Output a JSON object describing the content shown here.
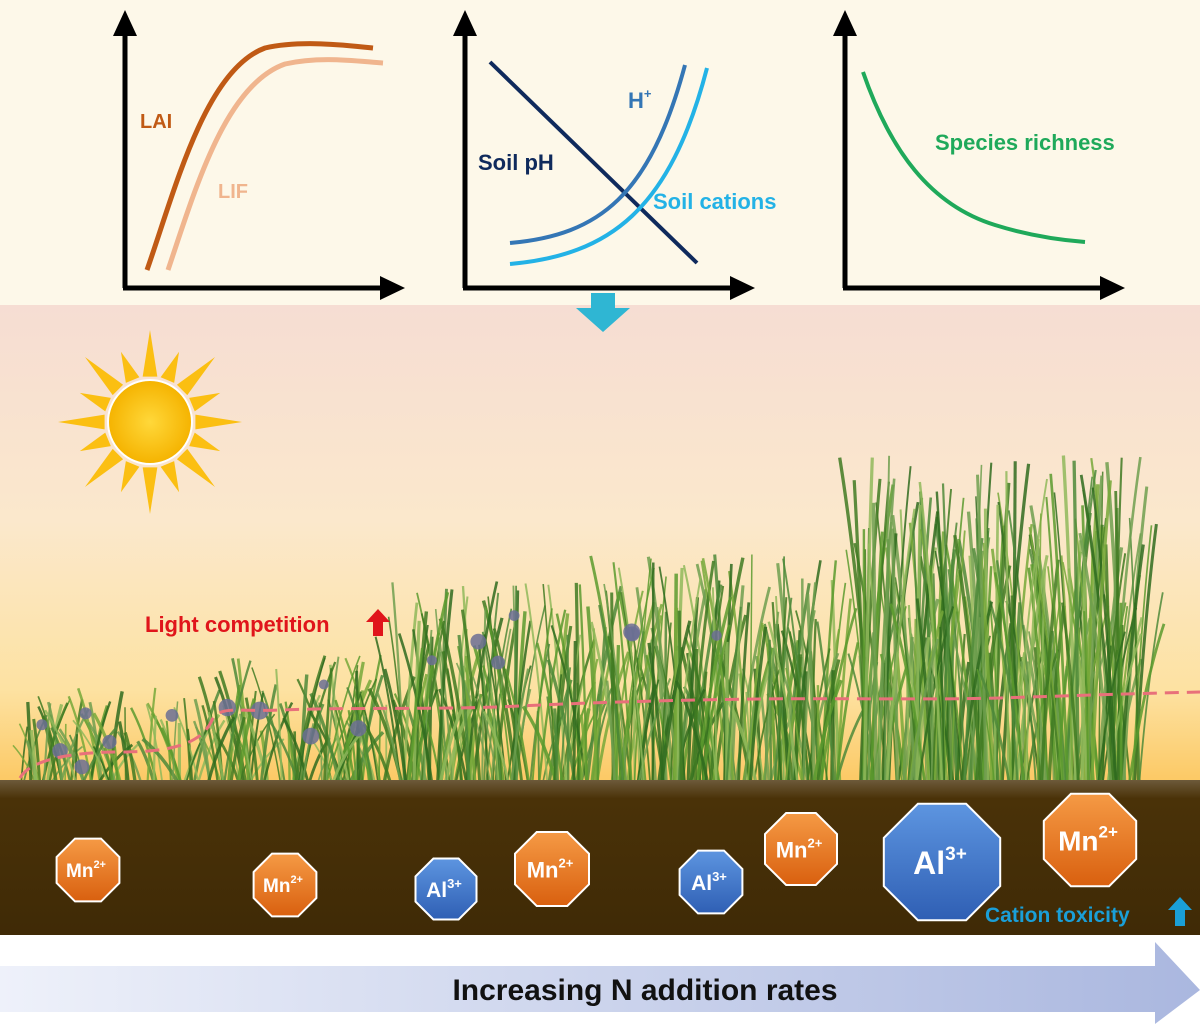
{
  "colors": {
    "top_panel_bg": "#fdf8e9",
    "sky_top": "#f6dfd4",
    "sky_mid": "#fbe9c8",
    "sky_horizon": "#fccf6e",
    "soil": "#4a3208",
    "lai": "#c05a15",
    "lif": "#f0b58e",
    "soil_ph": "#0f2a5c",
    "h_plus": "#3476b5",
    "soil_cations": "#23b2e6",
    "species_richness": "#1fa95a",
    "mn_ion": "#e8731f",
    "al_ion": "#3a6fc4",
    "light_competition": "#e0151b",
    "cation_toxicity": "#1a9fd8",
    "sun": "#fbbf12",
    "down_arrow": "#2fb6d3",
    "bottom_arrow": "#c3cde8"
  },
  "charts": {
    "lai_lif": {
      "lai_label": "LAI",
      "lif_label": "LIF"
    },
    "soil": {
      "ph_label": "Soil pH",
      "h_label": "H",
      "h_sup": "+",
      "cations_label": "Soil cations"
    },
    "species": {
      "label": "Species richness"
    }
  },
  "annotations": {
    "light_competition": "Light competition",
    "cation_toxicity": "Cation toxicity"
  },
  "ions": [
    {
      "base": "Mn",
      "sup": "2+"
    },
    {
      "base": "Mn",
      "sup": "2+"
    },
    {
      "base": "Al",
      "sup": "3+"
    },
    {
      "base": "Mn",
      "sup": "2+"
    },
    {
      "base": "Al",
      "sup": "3+"
    },
    {
      "base": "Mn",
      "sup": "2+"
    },
    {
      "base": "Al",
      "sup": "3+"
    },
    {
      "base": "Mn",
      "sup": "2+"
    }
  ],
  "bottom_arrow_label": "Increasing N addition rates"
}
